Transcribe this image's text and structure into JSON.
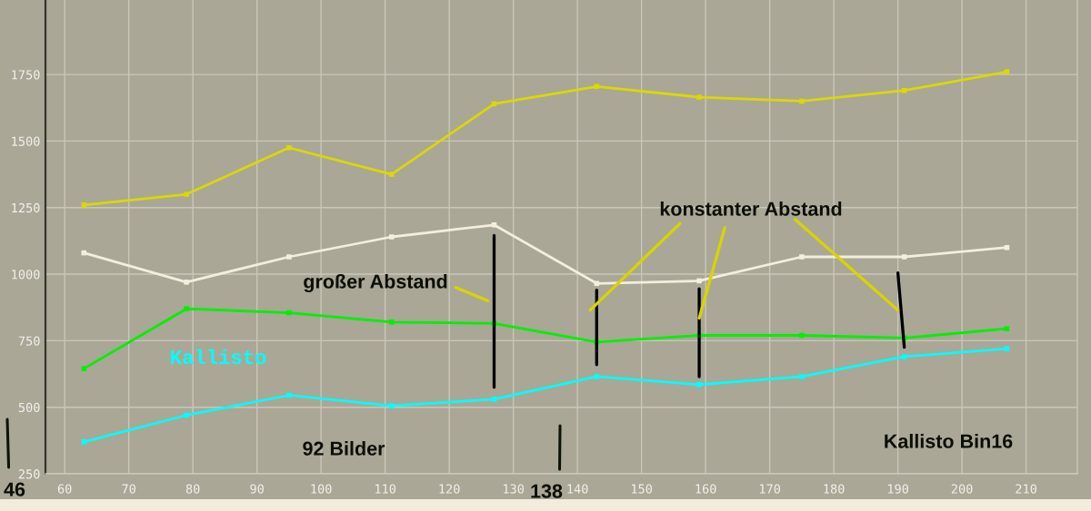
{
  "chart_data": {
    "type": "line",
    "x": [
      63,
      79,
      95,
      111,
      127,
      143,
      159,
      175,
      191,
      207
    ],
    "series": [
      {
        "color": "#dcd800",
        "values": [
          1260,
          1300,
          1475,
          1375,
          1640,
          1705,
          1665,
          1650,
          1690,
          1760
        ]
      },
      {
        "color": "#f4eedc",
        "values": [
          1080,
          970,
          1065,
          1140,
          1185,
          965,
          975,
          1065,
          1065,
          1100
        ]
      },
      {
        "color": "#00f000",
        "values": [
          645,
          870,
          855,
          820,
          815,
          745,
          770,
          770,
          760,
          795
        ]
      },
      {
        "name": "Kallisto",
        "color": "#00ffff",
        "values": [
          370,
          470,
          545,
          505,
          530,
          615,
          585,
          615,
          690,
          720
        ]
      },
      {
        "color": "#000000",
        "marker": "none",
        "x": [
          127,
          127
        ],
        "values": [
          1145,
          575
        ]
      },
      {
        "color": "#000000",
        "marker": "none",
        "x": [
          143,
          143
        ],
        "values": [
          940,
          660
        ]
      },
      {
        "color": "#000000",
        "marker": "none",
        "x": [
          159,
          159
        ],
        "values": [
          945,
          615
        ]
      },
      {
        "color": "#000000",
        "marker": "none",
        "x": [
          190,
          191
        ],
        "values": [
          1005,
          725
        ]
      },
      {
        "color": "#d8d400",
        "marker": "none",
        "x": [
          121,
          126
        ],
        "values": [
          950,
          900
        ]
      },
      {
        "color": "#d8d400",
        "marker": "none",
        "x": [
          156,
          142
        ],
        "values": [
          1190,
          865
        ]
      },
      {
        "color": "#d8d400",
        "marker": "none",
        "x": [
          163,
          159
        ],
        "values": [
          1175,
          835
        ]
      },
      {
        "color": "#d8d400",
        "marker": "none",
        "x": [
          174,
          190
        ],
        "values": [
          1205,
          865
        ]
      }
    ],
    "xlim": [
      57,
      218
    ],
    "xticks": [
      60,
      70,
      80,
      90,
      100,
      110,
      120,
      130,
      140,
      150,
      160,
      170,
      180,
      190,
      200,
      210
    ],
    "ylim": [
      250,
      2030
    ],
    "yticks": [
      250,
      500,
      750,
      1000,
      1250,
      1500,
      1750
    ],
    "grid": true,
    "marker": "square",
    "annotations": [
      "großer Abstand",
      "konstanter Abstand",
      "92 Bilder",
      "Kallisto Bin16",
      "46",
      "138"
    ]
  }
}
